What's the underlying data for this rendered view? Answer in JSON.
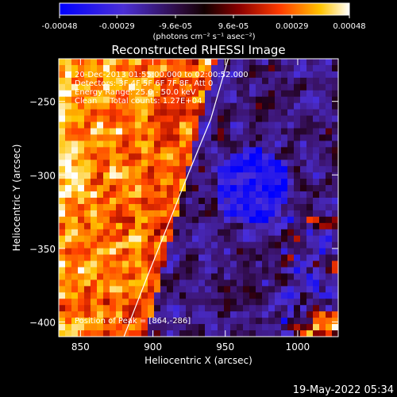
{
  "colorbar": {
    "ticks": [
      "-0.00048",
      "-0.00029",
      "-9.6e-05",
      "9.6e-05",
      "0.00029",
      "0.00048"
    ],
    "tick_values": [
      -0.00048,
      -0.00029,
      -9.6e-05,
      9.6e-05,
      0.00029,
      0.00048
    ],
    "range": [
      -0.00048,
      0.00048
    ],
    "units_label": "(photons cm⁻² s⁻¹ asec⁻²)"
  },
  "chart_data": {
    "type": "heatmap",
    "title": "Reconstructed RHESSI Image",
    "xlabel": "Heliocentric X (arcsec)",
    "ylabel": "Heliocentric Y (arcsec)",
    "xlim": [
      835,
      1028
    ],
    "ylim": [
      -410,
      -221
    ],
    "xticks": [
      850,
      900,
      950,
      1000
    ],
    "xtick_labels": [
      "850",
      "900",
      "950",
      "1000"
    ],
    "yticks": [
      -250,
      -300,
      -350,
      -400
    ],
    "ytick_labels": [
      "−250",
      "−300",
      "−350",
      "−400"
    ],
    "annotations": [
      "20-Dec-2013 01:55:00.000 to 02:00:52.000",
      "Detectors: 3F 4F 5F 6F 7F 8F, Att 0",
      "Energy Range: 25.0 - 50.0 keV",
      "Clean     Total counts: 1.27E+04"
    ],
    "peak_label": "Position of Peak = [864,-286]",
    "peak": [
      864,
      -286
    ],
    "limb_curve": [
      [
        880,
        -410
      ],
      [
        895,
        -372
      ],
      [
        910,
        -335
      ],
      [
        925,
        -298
      ],
      [
        940,
        -262
      ],
      [
        952,
        -221
      ]
    ]
  },
  "footer": {
    "timestamp": "19-May-2022 05:34"
  }
}
